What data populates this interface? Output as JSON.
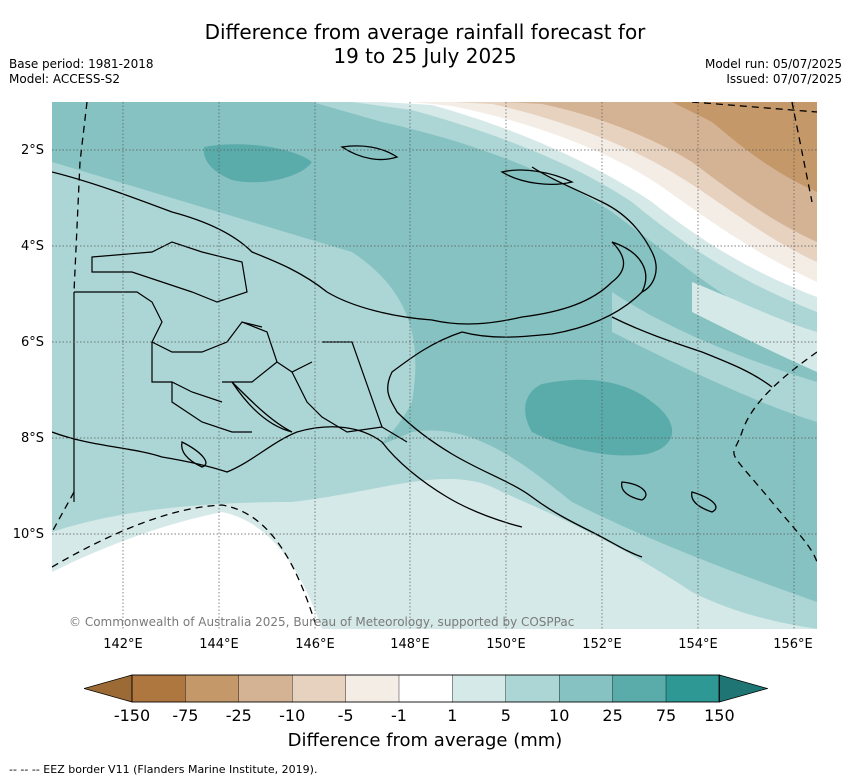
{
  "title_line1": "Difference from average rainfall forecast for",
  "title_line2": "19 to 25 July 2025",
  "base_period": "Base period: 1981-2018",
  "model": "Model: ACCESS-S2",
  "model_run": "Model run: 05/07/2025",
  "issued": "Issued: 07/07/2025",
  "map": {
    "lat_labels": [
      "2°S",
      "4°S",
      "6°S",
      "8°S",
      "10°S"
    ],
    "lon_labels": [
      "142°E",
      "144°E",
      "146°E",
      "148°E",
      "150°E",
      "152°E",
      "154°E",
      "156°E"
    ],
    "copyright": "© Commonwealth of Australia 2025, Bureau of Meteorology, supported by COSPPac"
  },
  "colorbar": {
    "title": "Difference from average (mm)",
    "ticks": [
      "-150",
      "-75",
      "-25",
      "-10",
      "-5",
      "-1",
      "1",
      "5",
      "10",
      "25",
      "75",
      "150"
    ],
    "colors": [
      "#9c6a35",
      "#ae773f",
      "#c49868",
      "#d4b394",
      "#e7d2c0",
      "#f3ede6",
      "#ffffff",
      "#d5e9e8",
      "#acd6d5",
      "#86c2c1",
      "#5aacab",
      "#2e9894",
      "#1e7574"
    ]
  },
  "eez_legend": "--  --  -- EEZ border V11 (Flanders Marine Institute, 2019)."
}
